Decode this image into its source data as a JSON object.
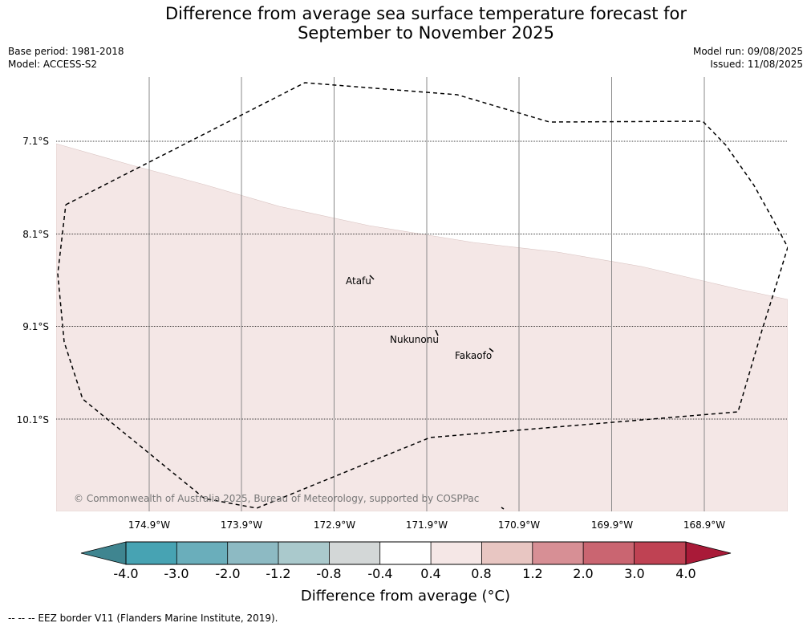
{
  "title_line1": "Difference from average sea surface temperature forecast for",
  "title_line2": "September to November 2025",
  "base_period": "Base period: 1981-2018",
  "model": "Model: ACCESS-S2",
  "model_run": "Model run: 09/08/2025",
  "issued": "Issued: 11/08/2025",
  "lat_labels": [
    "7.1°S",
    "8.1°S",
    "9.1°S",
    "10.1°S"
  ],
  "lon_labels": [
    "174.9°W",
    "173.9°W",
    "172.9°W",
    "171.9°W",
    "170.9°W",
    "169.9°W",
    "168.9°W"
  ],
  "places": {
    "atafu": "Atafu",
    "nukunonu": "Nukunonu",
    "fakaofo": "Fakaofo"
  },
  "copyright": "© Commonwealth of Australia 2025, Bureau of Meteorology, supported by COSPPac",
  "colorbar": {
    "ticks": [
      "-4.0",
      "-3.0",
      "-2.0",
      "-1.2",
      "-0.8",
      "-0.4",
      "0.4",
      "0.8",
      "1.2",
      "2.0",
      "3.0",
      "4.0"
    ],
    "colors": [
      "#3f8590",
      "#47a3b3",
      "#6aaebb",
      "#8dbac3",
      "#aac9cc",
      "#d3d7d7",
      "#ffffff",
      "#f5e7e6",
      "#e8c6c2",
      "#d78f95",
      "#ca6571",
      "#bf4253",
      "#a91a38"
    ],
    "title": "Difference from average (°C)"
  },
  "legend": "--  --  -- EEZ border V11 (Flanders Marine Institute, 2019).",
  "map_data": {
    "region_fill_color": "#f4e7e6",
    "region_class": "0.4 to 0.8",
    "eez_style": "dashed"
  }
}
